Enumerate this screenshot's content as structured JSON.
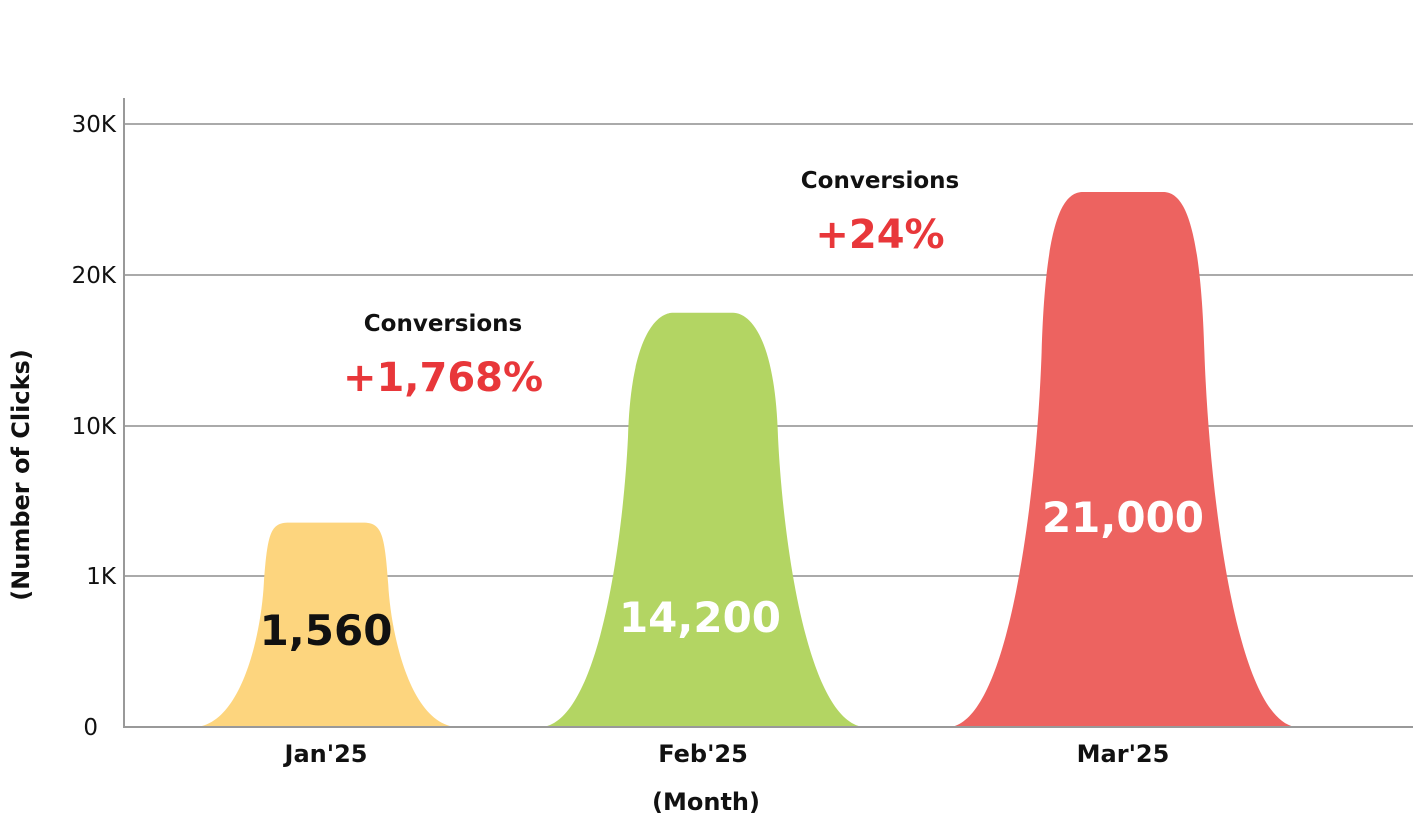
{
  "chart_data": {
    "type": "area",
    "xlabel": "(Month)",
    "ylabel": "(Number of Clicks)",
    "y_ticks": [
      "0",
      "1K",
      "10K",
      "20K",
      "30K"
    ],
    "categories": [
      "Jan'25",
      "Feb'25",
      "Mar'25"
    ],
    "values": [
      1560,
      14200,
      21000
    ],
    "value_labels": [
      "1,560",
      "14,200",
      "21,000"
    ],
    "colors": [
      "#fdd57e",
      "#b3d563",
      "#ed6360"
    ],
    "value_label_colors": [
      "#111111",
      "#ffffff",
      "#ffffff"
    ],
    "grid": true,
    "annotations": [
      {
        "title": "Conversions",
        "value": "+1,768%",
        "color": "#e8373a"
      },
      {
        "title": "Conversions",
        "value": "+24%",
        "color": "#e8373a"
      }
    ]
  }
}
